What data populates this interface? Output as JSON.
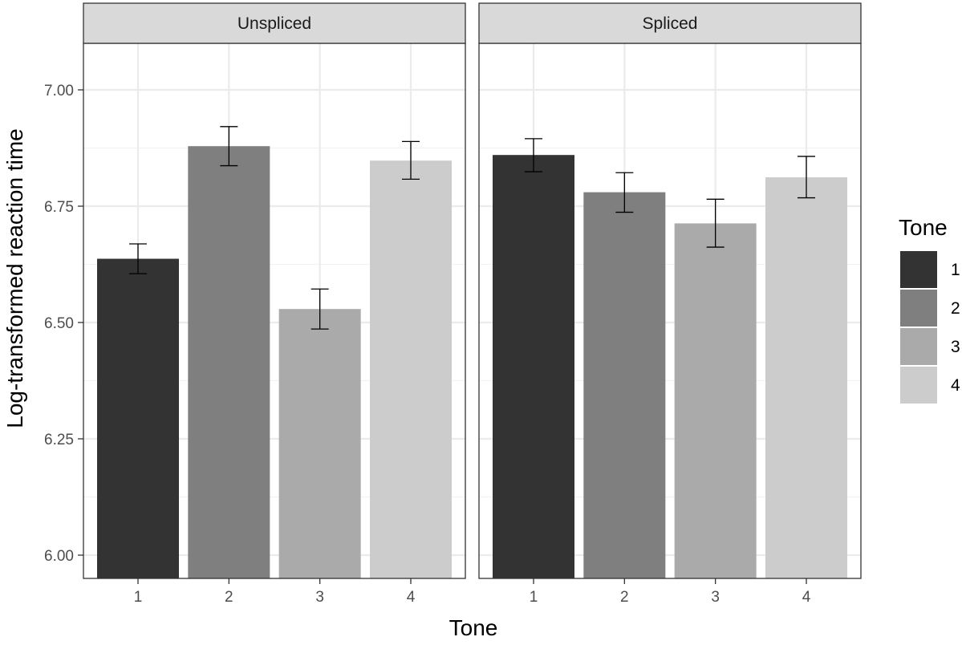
{
  "chart_data": {
    "type": "bar",
    "title": "",
    "xlabel": "Tone",
    "ylabel": "Log-transformed reaction time",
    "ylim": [
      5.95,
      7.1
    ],
    "yticks": [
      "6.00",
      "6.25",
      "6.50",
      "6.75",
      "7.00"
    ],
    "categories": [
      "1",
      "2",
      "3",
      "4"
    ],
    "grid": true,
    "legend": {
      "title": "Tone",
      "position": "right",
      "entries": [
        "1",
        "2",
        "3",
        "4"
      ]
    },
    "colors": [
      "#333333",
      "#7f7f7f",
      "#aaaaaa",
      "#cccccc"
    ],
    "panels": [
      {
        "label": "Unspliced",
        "values": [
          6.637,
          6.879,
          6.529,
          6.848
        ],
        "error_low": [
          6.605,
          6.837,
          6.486,
          6.808
        ],
        "error_high": [
          6.669,
          6.921,
          6.572,
          6.889
        ]
      },
      {
        "label": "Spliced",
        "values": [
          6.86,
          6.78,
          6.713,
          6.812
        ],
        "error_low": [
          6.824,
          6.737,
          6.662,
          6.768
        ],
        "error_high": [
          6.895,
          6.822,
          6.765,
          6.857
        ]
      }
    ]
  }
}
